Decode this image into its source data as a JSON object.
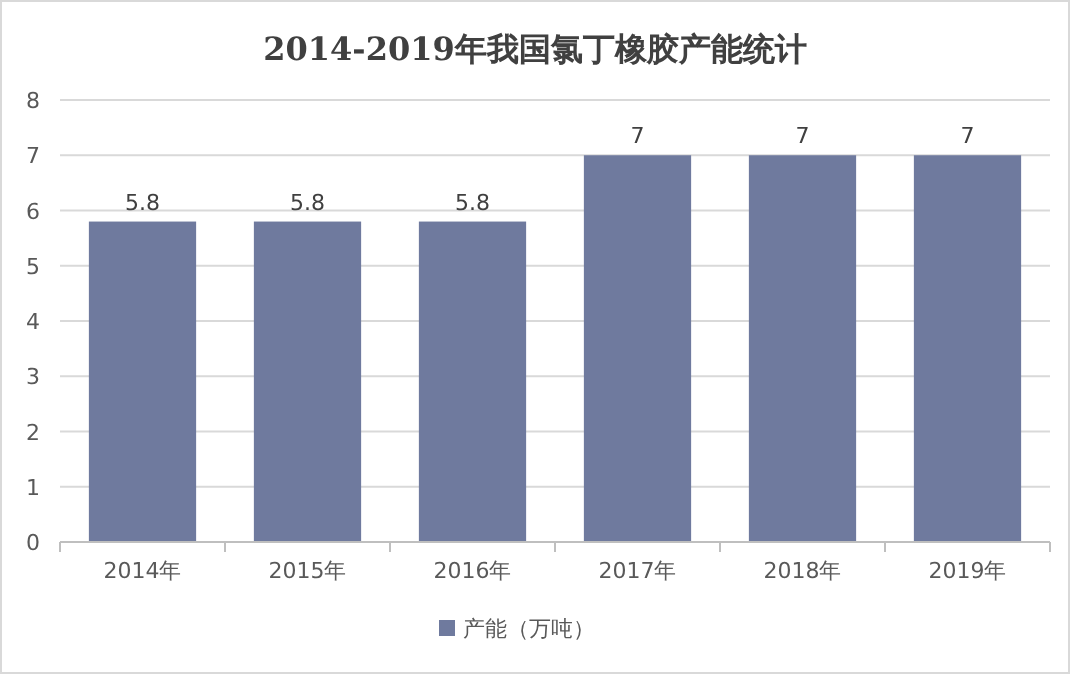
{
  "chart_data": {
    "type": "bar",
    "title": "2014-2019年我国氯丁橡胶产能统计",
    "categories": [
      "2014年",
      "2015年",
      "2016年",
      "2017年",
      "2018年",
      "2019年"
    ],
    "series": [
      {
        "name": "产能（万吨）",
        "color": "#6f7a9e",
        "values": [
          5.8,
          5.8,
          5.8,
          7,
          7,
          7
        ]
      }
    ],
    "ylim": [
      0,
      8
    ],
    "yticks": [
      0,
      1,
      2,
      3,
      4,
      5,
      6,
      7,
      8
    ],
    "grid": "y",
    "legend": "bottom",
    "data_labels": true
  }
}
